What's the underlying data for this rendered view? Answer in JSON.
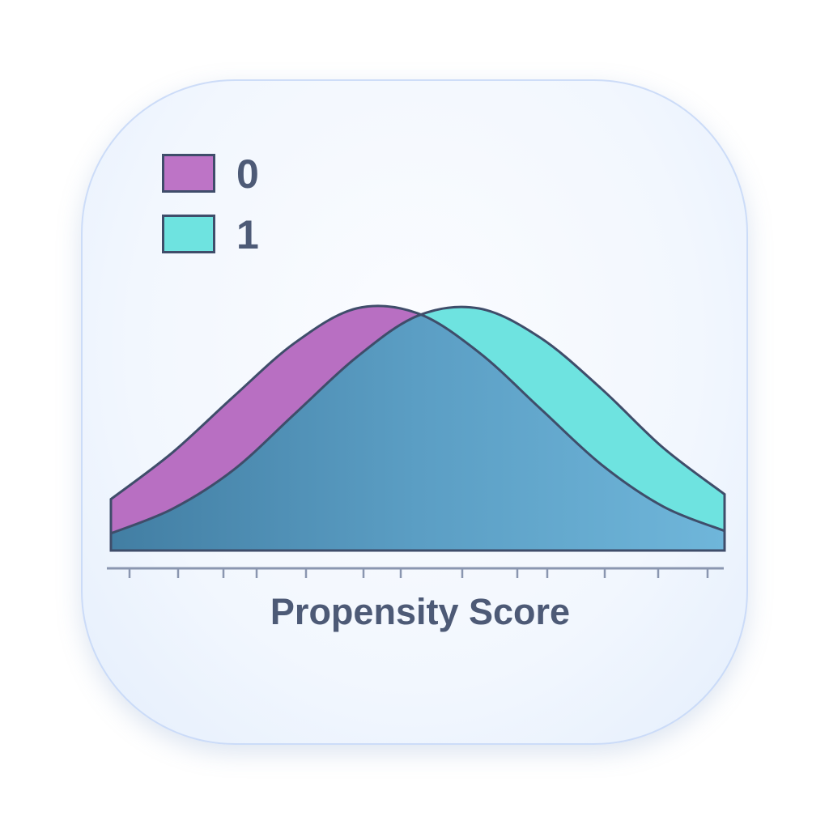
{
  "chart_data": {
    "type": "area",
    "xlabel": "Propensity Score",
    "ylabel": "",
    "legend": {
      "placement": "top-left",
      "entries": [
        "0",
        "1"
      ]
    },
    "grid": false,
    "x": [
      0,
      0.1,
      0.2,
      0.3,
      0.4,
      0.5,
      0.6,
      0.7,
      0.8,
      0.9,
      1.0
    ],
    "series": [
      {
        "name": "0",
        "color": "#b86fc2",
        "values": [
          0.21,
          0.4,
          0.63,
          0.85,
          0.99,
          0.97,
          0.81,
          0.58,
          0.35,
          0.18,
          0.08
        ]
      },
      {
        "name": "1",
        "color": "#6ee3e0",
        "values": [
          0.07,
          0.17,
          0.33,
          0.56,
          0.79,
          0.96,
          0.99,
          0.87,
          0.66,
          0.42,
          0.23
        ]
      }
    ],
    "overlap_color": "#5b9ec4",
    "outline_color": "#3f4d6a"
  }
}
